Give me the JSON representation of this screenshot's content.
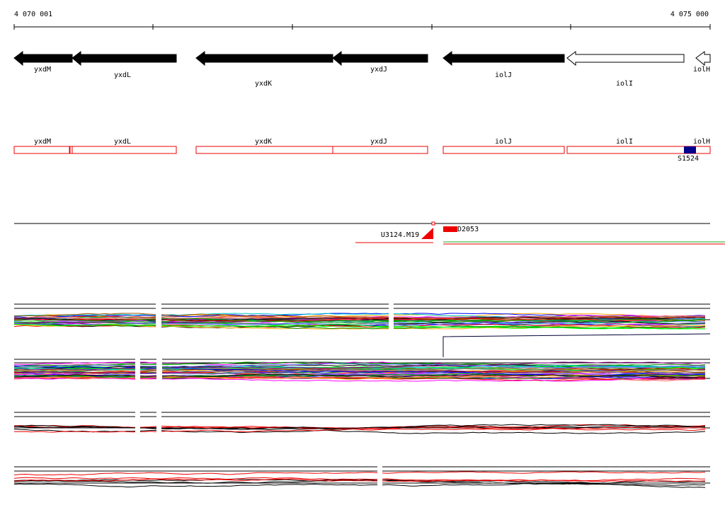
{
  "ruler": {
    "start": "4 070 001",
    "end": "4 075 000"
  },
  "genes": [
    "yxdM",
    "yxdL",
    "yxdK",
    "yxdJ",
    "iolJ",
    "iolI",
    "iolH"
  ],
  "features": [
    "yxdM",
    "yxdL",
    "yxdK",
    "yxdJ",
    "iolJ",
    "iolI",
    "iolH"
  ],
  "feature_tag": "S1524",
  "probes": [
    "U3124.M19",
    "D2053"
  ]
}
